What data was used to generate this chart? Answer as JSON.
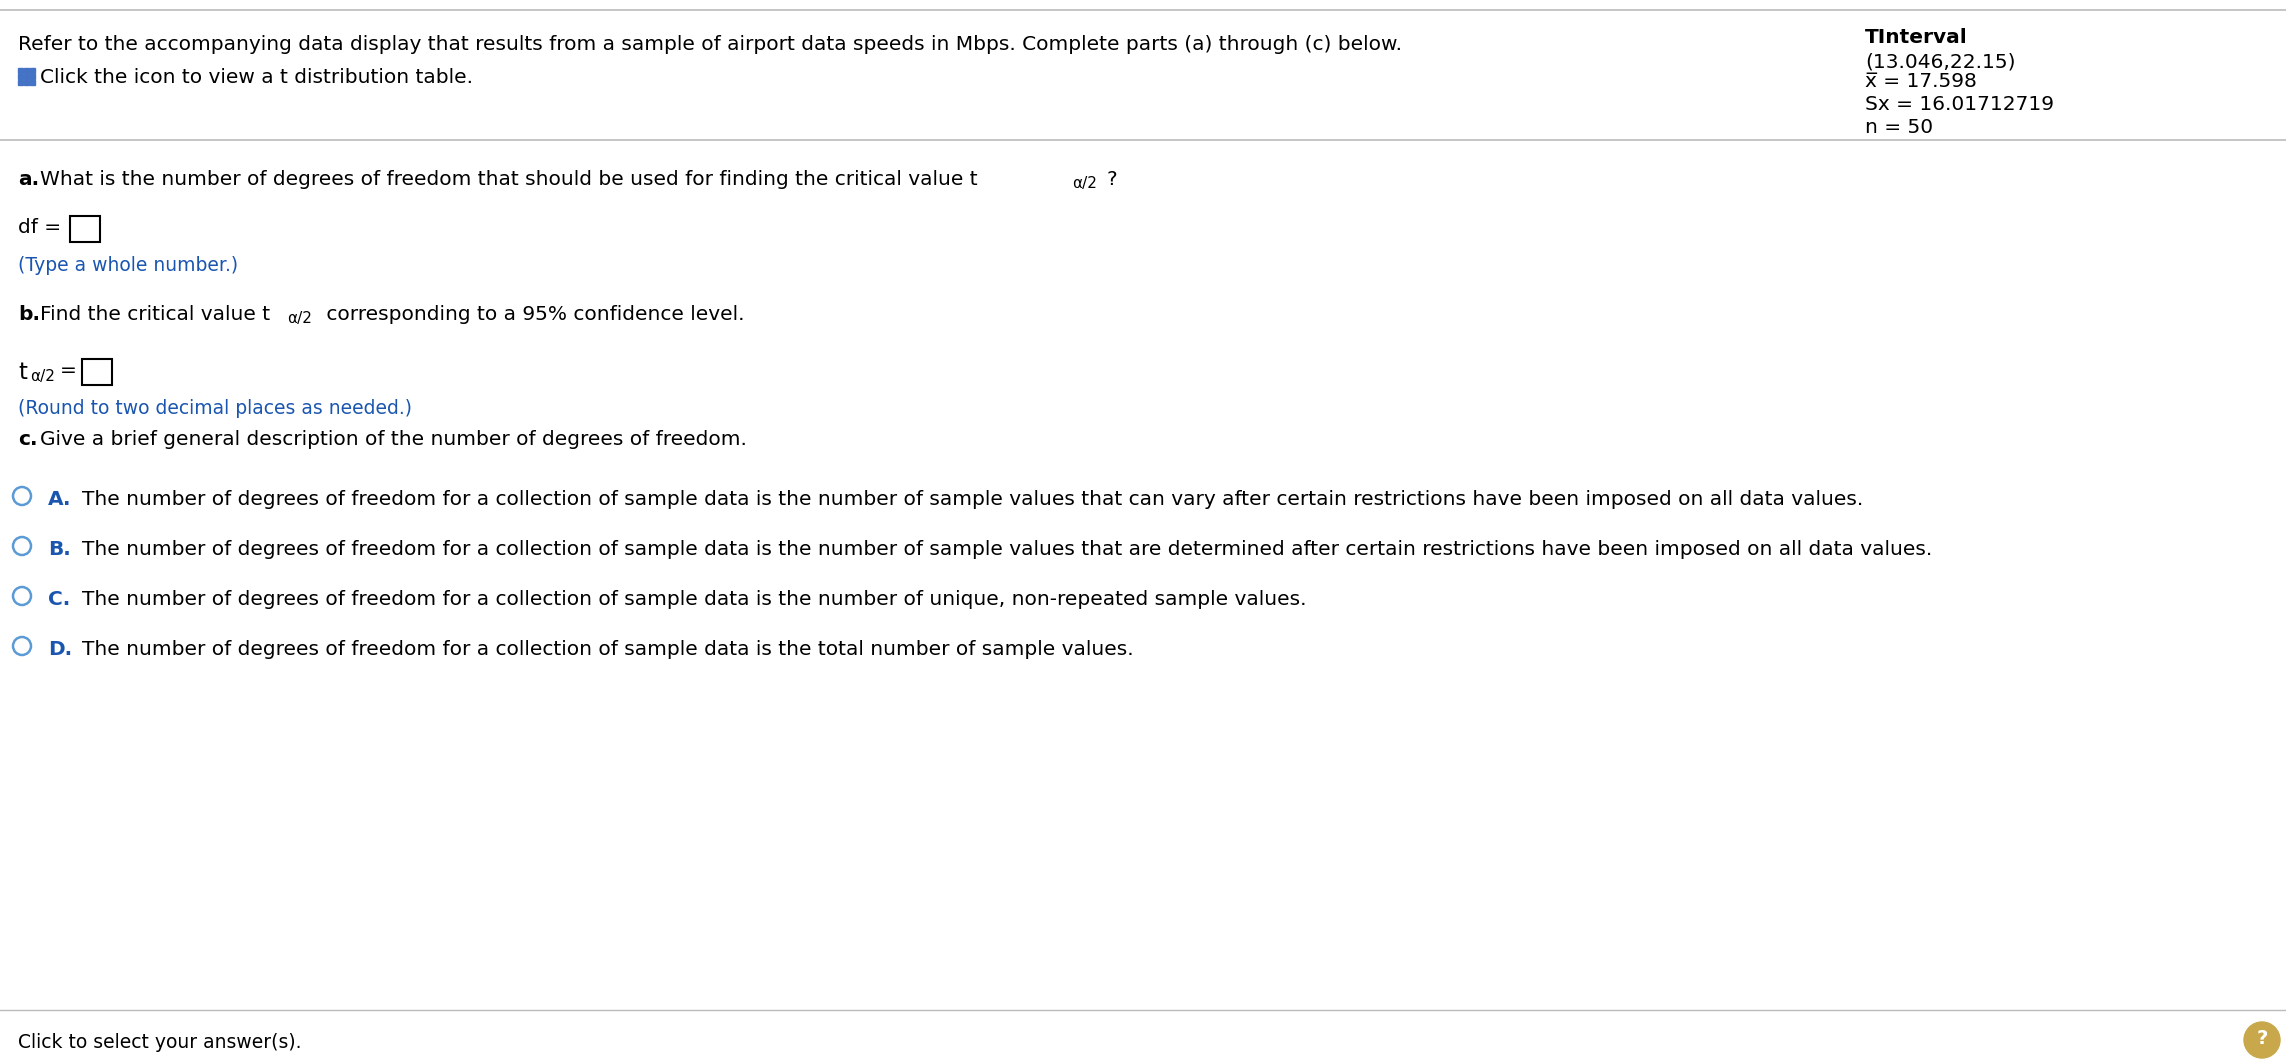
{
  "bg_color": "#ffffff",
  "header_text": "Refer to the accompanying data display that results from a sample of airport data speeds in Mbps. Complete parts (a) through (c) below.",
  "click_icon_text": "Click the icon to view a t distribution table.",
  "tinterval_title": "TInterval",
  "tinterval_line1": "(13.046,22.15)",
  "tinterval_xbar": "x̅ = 17.598",
  "tinterval_sx": "Sx = 16.01712719",
  "tinterval_n": "n = 50",
  "df_hint": "(Type a whole number.)",
  "t_hint": "(Round to two decimal places as needed.)",
  "option_A_text": "The number of degrees of freedom for a collection of sample data is the number of sample values that can vary after certain restrictions have been imposed on all data values.",
  "option_B_text": "The number of degrees of freedom for a collection of sample data is the number of sample values that are determined after certain restrictions have been imposed on all data values.",
  "option_C_text": "The number of degrees of freedom for a collection of sample data is the number of unique, non-repeated sample values.",
  "option_D_text": "The number of degrees of freedom for a collection of sample data is the total number of sample values.",
  "bottom_text": "Click to select your answer(s).",
  "letter_color": "#1a56b0",
  "hint_color": "#1a56b0",
  "normal_color": "#000000",
  "circle_color": "#5b9bd5",
  "icon_color": "#4472c4",
  "box_color": "#000000",
  "sep_line_color": "#bbbbbb",
  "header_fs": 14.5,
  "body_fs": 14.5,
  "sub_fs": 11.0,
  "hint_fs": 13.5,
  "ti_fs": 14.5
}
